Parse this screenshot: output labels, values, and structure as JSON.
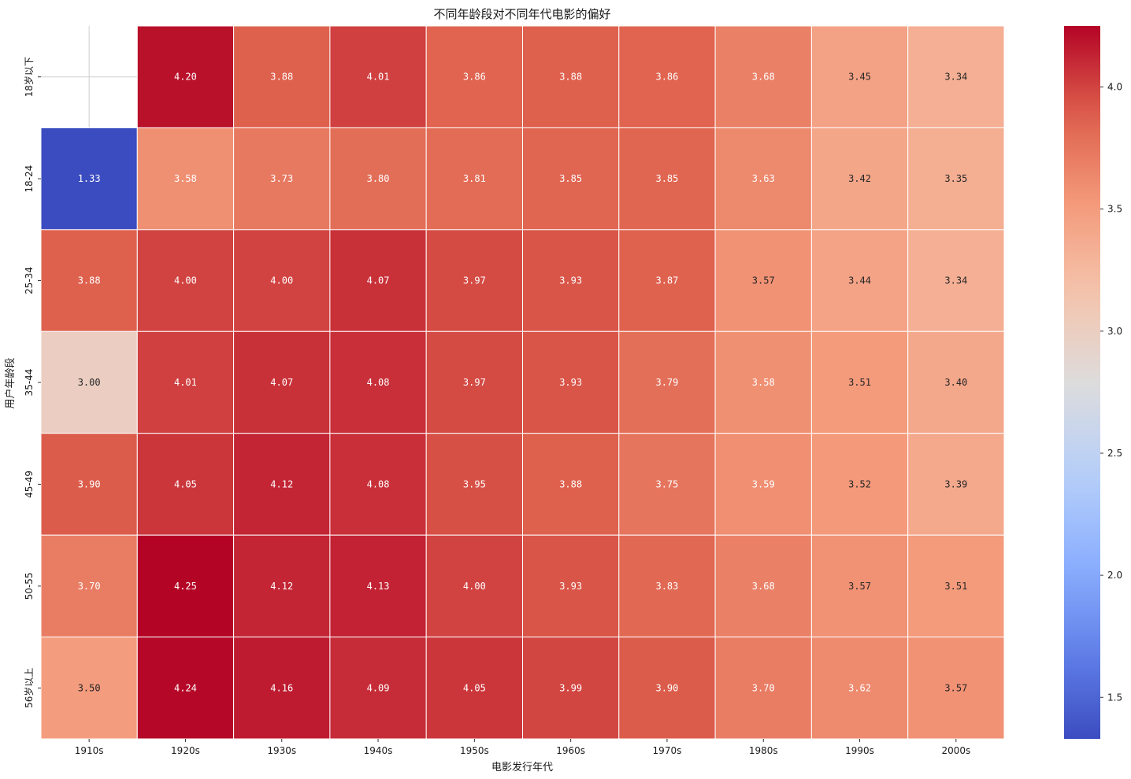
{
  "chart_data": {
    "type": "heatmap",
    "title": "不同年龄段对不同年代电影的偏好",
    "xlabel": "电影发行年代",
    "ylabel": "用户年龄段",
    "x_categories": [
      "1910s",
      "1920s",
      "1930s",
      "1940s",
      "1950s",
      "1960s",
      "1970s",
      "1980s",
      "1990s",
      "2000s"
    ],
    "y_categories": [
      "18岁以下",
      "18-24",
      "25-34",
      "35-44",
      "45-49",
      "50-55",
      "56岁以上"
    ],
    "values": [
      [
        null,
        4.2,
        3.88,
        4.01,
        3.86,
        3.88,
        3.86,
        3.68,
        3.45,
        3.34
      ],
      [
        1.33,
        3.58,
        3.73,
        3.8,
        3.81,
        3.85,
        3.85,
        3.63,
        3.42,
        3.35
      ],
      [
        3.88,
        4.0,
        4.0,
        4.07,
        3.97,
        3.93,
        3.87,
        3.57,
        3.44,
        3.34
      ],
      [
        3.0,
        4.01,
        4.07,
        4.08,
        3.97,
        3.93,
        3.79,
        3.58,
        3.51,
        3.4
      ],
      [
        3.9,
        4.05,
        4.12,
        4.08,
        3.95,
        3.88,
        3.75,
        3.59,
        3.52,
        3.39
      ],
      [
        3.7,
        4.25,
        4.12,
        4.13,
        4.0,
        3.93,
        3.83,
        3.68,
        3.57,
        3.51
      ],
      [
        3.5,
        4.24,
        4.16,
        4.09,
        4.05,
        3.99,
        3.9,
        3.7,
        3.62,
        3.57
      ]
    ],
    "value_format": "0.00",
    "colormap": "coolwarm",
    "vmin": 1.33,
    "vmax": 4.25,
    "colorbar_ticks": [
      "1.5",
      "2.0",
      "2.5",
      "3.0",
      "3.5",
      "4.0"
    ],
    "grid": true
  }
}
